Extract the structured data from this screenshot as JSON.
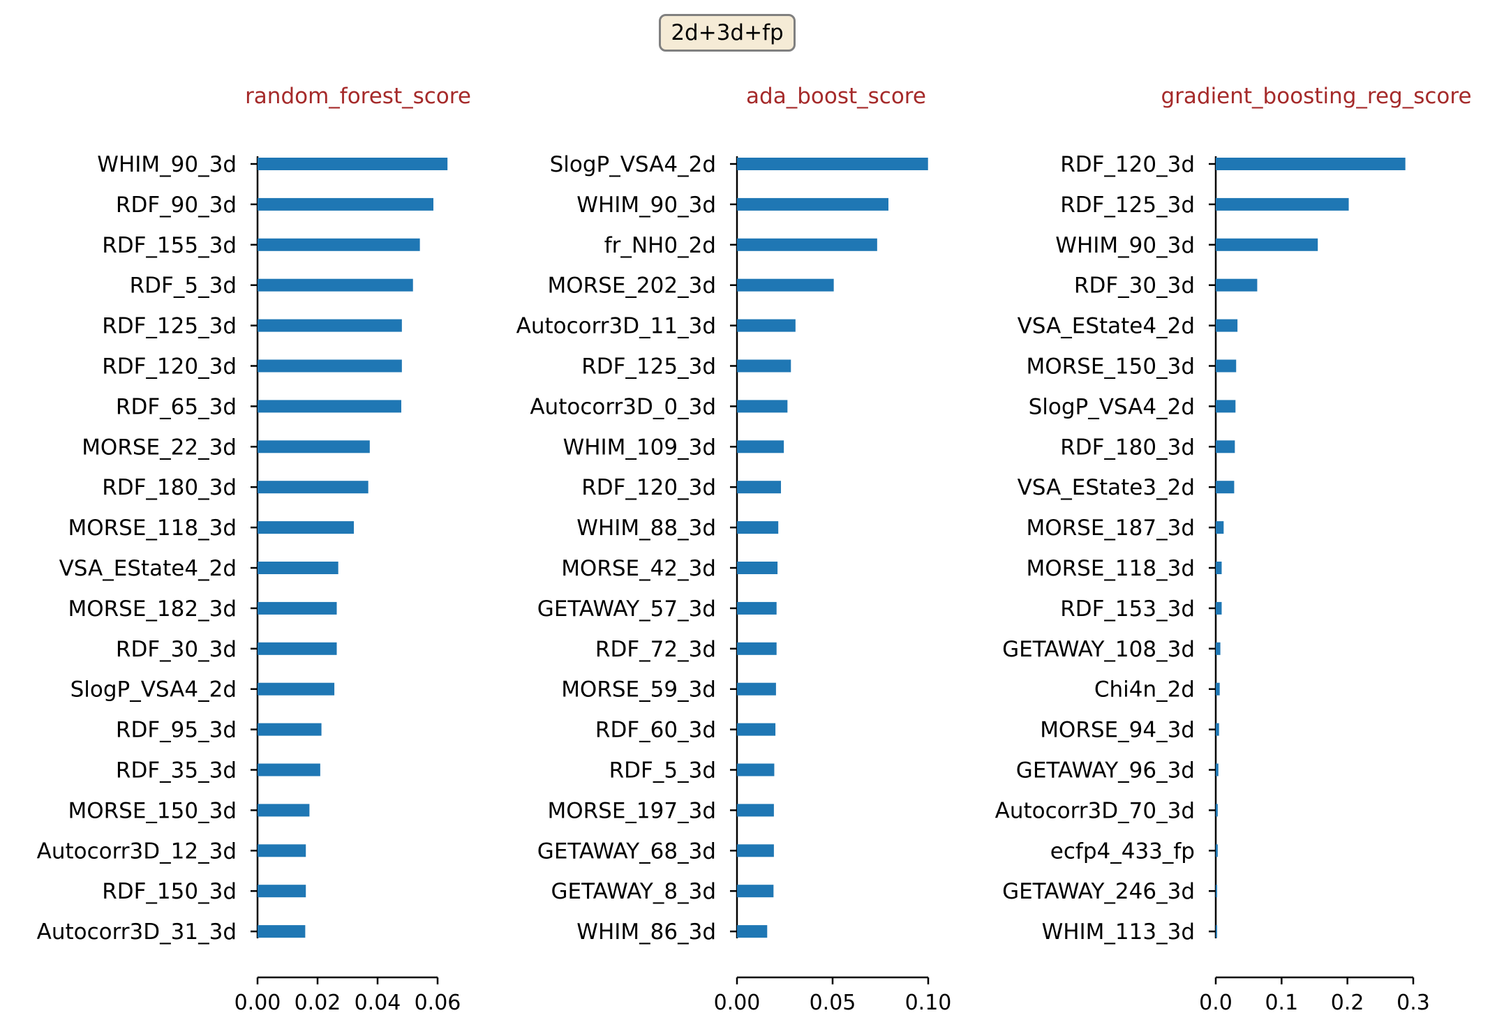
{
  "figure": {
    "badge_label": "2d+3d+fp",
    "title_color": "#a52a2a",
    "bar_color": "#1f77b4"
  },
  "chart_data": [
    {
      "type": "bar",
      "orientation": "horizontal",
      "title": "random_forest_score",
      "categories": [
        "WHIM_90_3d",
        "RDF_90_3d",
        "RDF_155_3d",
        "RDF_5_3d",
        "RDF_125_3d",
        "RDF_120_3d",
        "RDF_65_3d",
        "MORSE_22_3d",
        "RDF_180_3d",
        "MORSE_118_3d",
        "VSA_EState4_2d",
        "MORSE_182_3d",
        "RDF_30_3d",
        "SlogP_VSA4_2d",
        "RDF_95_3d",
        "RDF_35_3d",
        "MORSE_150_3d",
        "Autocorr3D_12_3d",
        "RDF_150_3d",
        "Autocorr3D_31_3d"
      ],
      "values": [
        0.0633,
        0.0586,
        0.0541,
        0.0518,
        0.0481,
        0.0481,
        0.0479,
        0.0374,
        0.0369,
        0.0321,
        0.0269,
        0.0264,
        0.0264,
        0.0256,
        0.0213,
        0.0209,
        0.0173,
        0.0161,
        0.0161,
        0.0159
      ],
      "xticks": [
        0.0,
        0.02,
        0.04,
        0.06
      ],
      "xtick_labels": [
        "0.00",
        "0.02",
        "0.04",
        "0.06"
      ],
      "xlim": [
        0,
        0.06
      ]
    },
    {
      "type": "bar",
      "orientation": "horizontal",
      "title": "ada_boost_score",
      "categories": [
        "SlogP_VSA4_2d",
        "WHIM_90_3d",
        "fr_NH0_2d",
        "MORSE_202_3d",
        "Autocorr3D_11_3d",
        "RDF_125_3d",
        "Autocorr3D_0_3d",
        "WHIM_109_3d",
        "RDF_120_3d",
        "WHIM_88_3d",
        "MORSE_42_3d",
        "GETAWAY_57_3d",
        "RDF_72_3d",
        "MORSE_59_3d",
        "RDF_60_3d",
        "RDF_5_3d",
        "MORSE_197_3d",
        "GETAWAY_68_3d",
        "GETAWAY_8_3d",
        "WHIM_86_3d"
      ],
      "values": [
        0.0999,
        0.0792,
        0.0733,
        0.0506,
        0.0306,
        0.0282,
        0.0264,
        0.0245,
        0.023,
        0.0216,
        0.0212,
        0.0207,
        0.0207,
        0.0204,
        0.0201,
        0.0195,
        0.0193,
        0.0193,
        0.0191,
        0.0158
      ],
      "xticks": [
        0.0,
        0.05,
        0.1
      ],
      "xtick_labels": [
        "0.00",
        "0.05",
        "0.10"
      ],
      "xlim": [
        0,
        0.1
      ]
    },
    {
      "type": "bar",
      "orientation": "horizontal",
      "title": "gradient_boosting_reg_score",
      "categories": [
        "RDF_120_3d",
        "RDF_125_3d",
        "WHIM_90_3d",
        "RDF_30_3d",
        "VSA_EState4_2d",
        "MORSE_150_3d",
        "SlogP_VSA4_2d",
        "RDF_180_3d",
        "VSA_EState3_2d",
        "MORSE_187_3d",
        "MORSE_118_3d",
        "RDF_153_3d",
        "GETAWAY_108_3d",
        "Chi4n_2d",
        "MORSE_94_3d",
        "GETAWAY_96_3d",
        "Autocorr3D_70_3d",
        "ecfp4_433_fp",
        "GETAWAY_246_3d",
        "WHIM_113_3d"
      ],
      "values": [
        0.288,
        0.202,
        0.155,
        0.063,
        0.033,
        0.031,
        0.03,
        0.029,
        0.028,
        0.012,
        0.009,
        0.009,
        0.007,
        0.006,
        0.005,
        0.004,
        0.003,
        0.003,
        0.002,
        0.002
      ],
      "xticks": [
        0.0,
        0.1,
        0.2,
        0.3
      ],
      "xtick_labels": [
        "0.0",
        "0.1",
        "0.2",
        "0.3"
      ],
      "xlim": [
        0,
        0.3
      ]
    }
  ]
}
